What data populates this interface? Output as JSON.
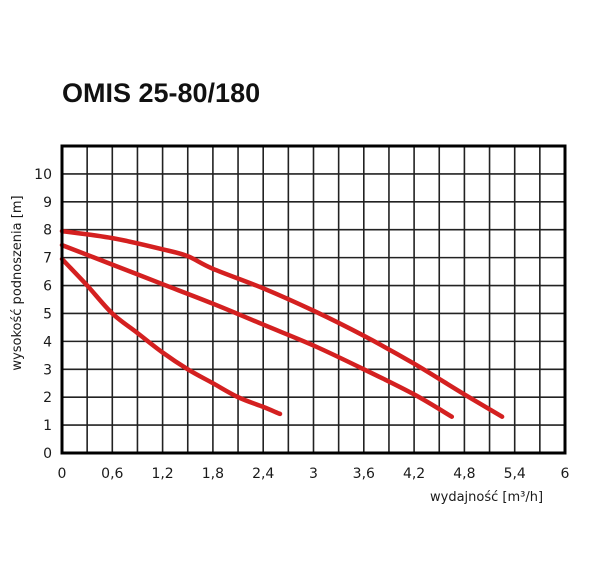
{
  "chart_data": {
    "type": "line",
    "title": "OMIS 25-80/180",
    "xlabel": "wydajność [m³/h]",
    "ylabel": "wysokość podnoszenia [m]",
    "xlim": [
      0,
      6
    ],
    "ylim": [
      0,
      11
    ],
    "x_ticks": [
      "0",
      "0,6",
      "1,2",
      "1,8",
      "2,4",
      "3",
      "3,6",
      "4,2",
      "4,8",
      "5,4",
      "6"
    ],
    "y_ticks": [
      "0",
      "1",
      "2",
      "3",
      "4",
      "5",
      "6",
      "7",
      "8",
      "9",
      "10"
    ],
    "grid": true,
    "line_color": "#d42020",
    "series": [
      {
        "x": [
          0,
          0.3,
          0.6,
          0.9,
          1.2,
          1.5,
          1.8,
          2.1,
          2.4,
          2.6
        ],
        "y": [
          6.95,
          6.0,
          5.0,
          4.3,
          3.6,
          3.0,
          2.5,
          2.0,
          1.65,
          1.4
        ]
      },
      {
        "x": [
          0,
          0.6,
          1.2,
          1.8,
          2.4,
          3.0,
          3.6,
          4.2,
          4.65
        ],
        "y": [
          7.45,
          6.75,
          6.05,
          5.35,
          4.6,
          3.85,
          3.0,
          2.1,
          1.3
        ]
      },
      {
        "x": [
          0,
          0.6,
          1.2,
          1.5,
          1.8,
          2.4,
          3.0,
          3.6,
          4.2,
          4.8,
          5.25
        ],
        "y": [
          7.95,
          7.7,
          7.3,
          7.05,
          6.6,
          5.9,
          5.1,
          4.2,
          3.2,
          2.1,
          1.3
        ]
      }
    ]
  }
}
